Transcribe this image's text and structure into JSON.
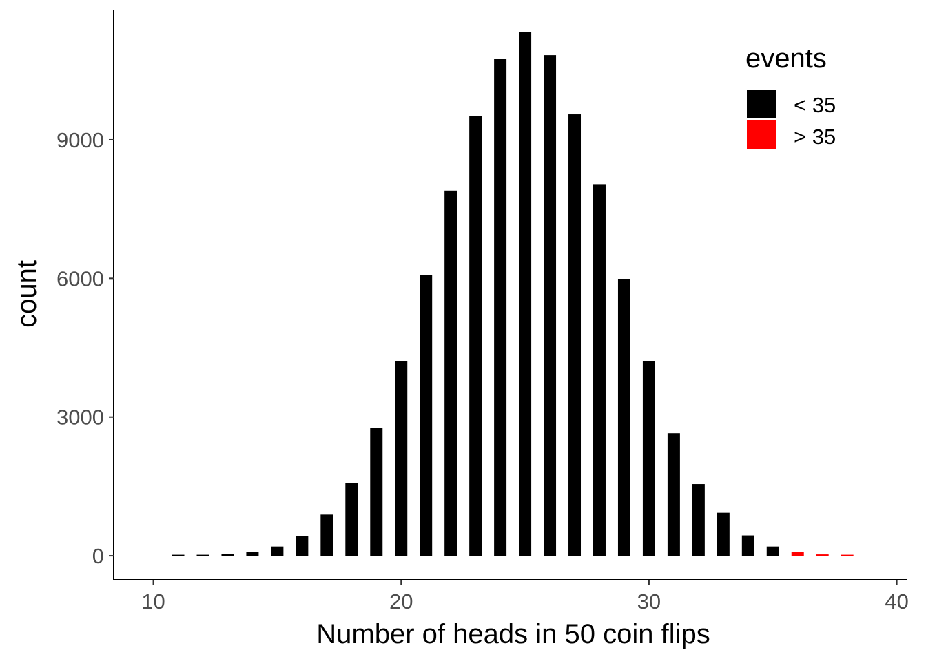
{
  "chart_data": {
    "type": "bar",
    "xlabel": "Number of heads in 50 coin flips",
    "ylabel": "count",
    "xlim": [
      8.4,
      40.4
    ],
    "ylim": [
      -520,
      11800
    ],
    "x_ticks": [
      10,
      20,
      30,
      40
    ],
    "y_ticks": [
      0,
      3000,
      6000,
      9000
    ],
    "grid": false,
    "legend_position": "top-right",
    "legend": {
      "title": "events",
      "entries": [
        {
          "label": "< 35",
          "color": "#000000"
        },
        {
          "label": "> 35",
          "color": "#ff0000"
        }
      ]
    },
    "bar_width": 0.5,
    "x": [
      11,
      12,
      13,
      14,
      15,
      16,
      17,
      18,
      19,
      20,
      21,
      22,
      23,
      24,
      25,
      26,
      27,
      28,
      29,
      30,
      31,
      32,
      33,
      34,
      35,
      36,
      37,
      38
    ],
    "values": [
      10,
      20,
      40,
      90,
      200,
      420,
      890,
      1580,
      2760,
      4210,
      6070,
      7900,
      9510,
      10750,
      11330,
      10830,
      9550,
      8040,
      5990,
      4210,
      2650,
      1550,
      930,
      440,
      200,
      90,
      30,
      10
    ],
    "groups": [
      "< 35",
      "< 35",
      "< 35",
      "< 35",
      "< 35",
      "< 35",
      "< 35",
      "< 35",
      "< 35",
      "< 35",
      "< 35",
      "< 35",
      "< 35",
      "< 35",
      "< 35",
      "< 35",
      "< 35",
      "< 35",
      "< 35",
      "< 35",
      "< 35",
      "< 35",
      "< 35",
      "< 35",
      "< 35",
      "> 35",
      "> 35",
      "> 35"
    ]
  }
}
